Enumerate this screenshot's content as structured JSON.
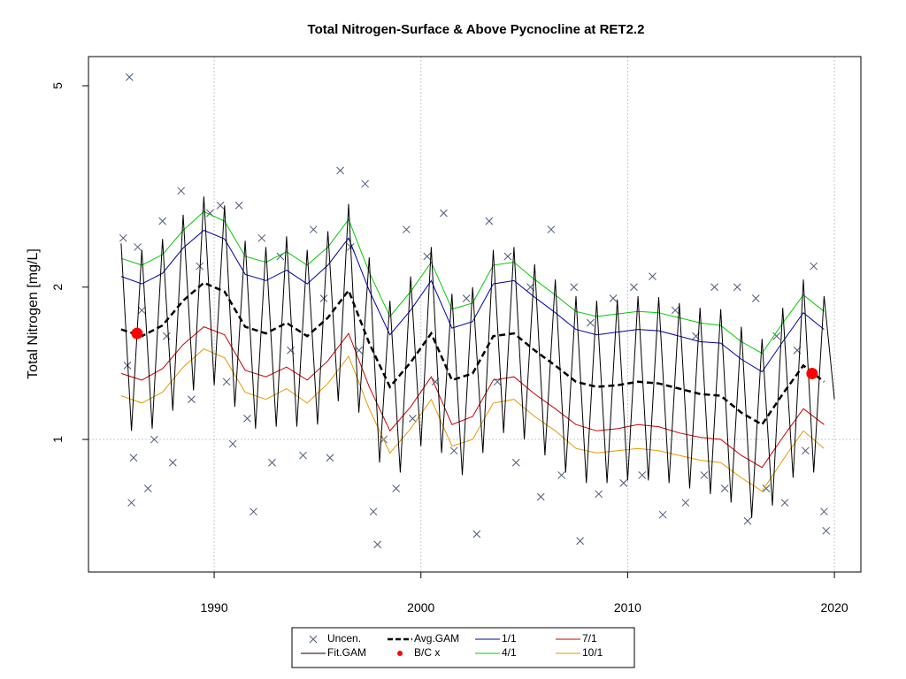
{
  "chart_data": {
    "type": "line",
    "title": "Total Nitrogen-Surface & Above Pycnocline at RET2.2",
    "y_label": "Total Nitrogen [mg/L]",
    "log_y": true,
    "grid": true,
    "ygrid": [
      1
    ],
    "xlim": [
      1983.92,
      2021.28
    ],
    "xticks": [
      1990,
      2000,
      2010,
      2020
    ],
    "ylim": [
      0.547,
      5.71
    ],
    "yticks": [
      1,
      2,
      5
    ],
    "x": [
      1985.5,
      1986.5,
      1987.5,
      1988.5,
      1989.5,
      1990.5,
      1991.5,
      1992.5,
      1993.5,
      1994.5,
      1995.5,
      1996.5,
      1997.5,
      1998.5,
      1999.5,
      2000.5,
      2001.5,
      2002.5,
      2003.5,
      2004.5,
      2005.5,
      2006.5,
      2007.5,
      2008.5,
      2009.5,
      2010.5,
      2011.5,
      2012.5,
      2013.5,
      2014.5,
      2015.5,
      2016.5,
      2017.5,
      2018.5,
      2019.5
    ],
    "series": [
      {
        "name": "Uncen.",
        "kind": "cross",
        "color": "#4a5a78",
        "x": [
          1985.6,
          1985.8,
          1986.0,
          1986.1,
          1986.3,
          1986.5,
          1986.8,
          1987.1,
          1987.5,
          1987.7,
          1988.0,
          1988.4,
          1988.9,
          1989.3,
          1989.8,
          1990.3,
          1990.6,
          1990.9,
          1991.2,
          1991.6,
          1991.9,
          1992.3,
          1992.8,
          1993.2,
          1993.7,
          1994.3,
          1994.8,
          1995.3,
          1995.6,
          1996.1,
          1996.6,
          1997.0,
          1997.3,
          1997.7,
          1997.9,
          1998.2,
          1998.8,
          1999.3,
          1999.6,
          2000.3,
          2000.7,
          2001.1,
          2001.6,
          2002.2,
          2002.7,
          2003.3,
          2003.7,
          2004.2,
          2004.6,
          2005.3,
          2005.8,
          2006.3,
          2006.8,
          2007.4,
          2007.7,
          2008.2,
          2008.6,
          2009.3,
          2009.8,
          2010.3,
          2010.7,
          2011.2,
          2011.7,
          2012.3,
          2012.8,
          2013.3,
          2013.7,
          2014.2,
          2014.7,
          2015.3,
          2015.8,
          2016.2,
          2016.7,
          2017.2,
          2017.6,
          2018.2,
          2018.6,
          2019.0,
          2019.5,
          2019.6,
          1985.9
        ],
        "values": [
          2.5,
          1.4,
          0.75,
          0.92,
          2.4,
          1.8,
          0.8,
          1.0,
          2.7,
          1.6,
          0.9,
          3.1,
          1.2,
          2.2,
          2.8,
          2.9,
          1.3,
          0.98,
          2.9,
          1.1,
          0.72,
          2.5,
          0.9,
          2.3,
          1.5,
          0.93,
          2.6,
          1.9,
          0.92,
          3.4,
          2.4,
          1.5,
          3.2,
          0.72,
          0.62,
          1.0,
          0.8,
          2.6,
          1.1,
          2.3,
          1.3,
          2.8,
          0.95,
          1.9,
          0.65,
          2.7,
          1.3,
          2.3,
          0.9,
          2.0,
          0.77,
          2.6,
          0.85,
          2.0,
          0.63,
          1.7,
          0.78,
          1.9,
          0.82,
          2.0,
          0.85,
          2.1,
          0.71,
          1.8,
          0.75,
          1.6,
          0.85,
          2.0,
          0.8,
          2.0,
          0.69,
          1.9,
          0.8,
          1.6,
          0.75,
          1.5,
          0.95,
          2.2,
          0.72,
          0.66,
          5.2
        ]
      },
      {
        "name": "Fit.GAM",
        "kind": "line",
        "color": "#000000",
        "x": [
          1985.5,
          1986.0,
          1986.5,
          1987.0,
          1987.5,
          1988.0,
          1988.5,
          1989.0,
          1989.5,
          1990.0,
          1990.5,
          1991.0,
          1991.5,
          1992.0,
          1992.5,
          1993.0,
          1993.5,
          1994.0,
          1994.5,
          1995.0,
          1995.5,
          1996.0,
          1996.5,
          1997.0,
          1997.5,
          1998.0,
          1998.5,
          1999.0,
          1999.5,
          2000.0,
          2000.5,
          2001.0,
          2001.5,
          2002.0,
          2002.5,
          2003.0,
          2003.5,
          2004.0,
          2004.5,
          2005.0,
          2005.5,
          2006.0,
          2006.5,
          2007.0,
          2007.5,
          2008.0,
          2008.5,
          2009.0,
          2009.5,
          2010.0,
          2010.5,
          2011.0,
          2011.5,
          2012.0,
          2012.5,
          2013.0,
          2013.5,
          2014.0,
          2014.5,
          2015.0,
          2015.5,
          2016.0,
          2016.5,
          2017.0,
          2017.5,
          2018.0,
          2018.5,
          2019.0,
          2019.5,
          2020.0
        ],
        "values": [
          2.44,
          1.04,
          2.37,
          1.05,
          2.49,
          1.14,
          2.78,
          1.25,
          3.02,
          1.28,
          2.9,
          1.16,
          2.47,
          1.05,
          2.4,
          1.06,
          2.52,
          1.06,
          2.37,
          1.07,
          2.58,
          1.19,
          2.92,
          1.13,
          2.29,
          0.9,
          1.88,
          0.86,
          2.1,
          0.97,
          2.4,
          0.94,
          1.94,
          0.85,
          2.0,
          0.94,
          2.37,
          1.03,
          2.4,
          1.0,
          2.22,
          0.93,
          2.07,
          0.86,
          1.92,
          0.82,
          1.88,
          0.82,
          1.89,
          0.83,
          1.92,
          0.83,
          1.91,
          0.82,
          1.86,
          0.8,
          1.82,
          0.78,
          1.81,
          0.75,
          1.67,
          0.7,
          1.58,
          0.74,
          1.82,
          0.84,
          2.07,
          0.86,
          1.92,
          1.2
        ]
      },
      {
        "name": "Avg.GAM",
        "kind": "dashed",
        "color": "#000000",
        "values": [
          1.65,
          1.6,
          1.68,
          1.88,
          2.04,
          1.96,
          1.67,
          1.62,
          1.7,
          1.6,
          1.74,
          1.97,
          1.55,
          1.27,
          1.42,
          1.62,
          1.31,
          1.35,
          1.6,
          1.62,
          1.5,
          1.4,
          1.3,
          1.27,
          1.28,
          1.3,
          1.29,
          1.26,
          1.23,
          1.22,
          1.13,
          1.07,
          1.23,
          1.4,
          1.3
        ]
      },
      {
        "name": "B/C x",
        "kind": "dot",
        "color": "#ff0000",
        "x": [
          1986.27,
          2018.92
        ],
        "values": [
          1.62,
          1.35
        ]
      },
      {
        "name": "1/1",
        "kind": "line",
        "color": "#0000aa",
        "values": [
          2.1,
          2.03,
          2.13,
          2.39,
          2.59,
          2.49,
          2.12,
          2.06,
          2.16,
          2.03,
          2.21,
          2.5,
          1.97,
          1.61,
          1.8,
          2.06,
          1.66,
          1.71,
          2.03,
          2.06,
          1.91,
          1.78,
          1.65,
          1.61,
          1.63,
          1.65,
          1.64,
          1.6,
          1.56,
          1.55,
          1.44,
          1.36,
          1.56,
          1.78,
          1.65
        ]
      },
      {
        "name": "4/1",
        "kind": "line",
        "color": "#00cc00",
        "values": [
          2.28,
          2.21,
          2.32,
          2.59,
          2.82,
          2.7,
          2.3,
          2.24,
          2.35,
          2.21,
          2.4,
          2.72,
          2.14,
          1.75,
          1.96,
          2.24,
          1.81,
          1.86,
          2.21,
          2.24,
          2.07,
          1.93,
          1.79,
          1.75,
          1.77,
          1.79,
          1.78,
          1.74,
          1.7,
          1.68,
          1.56,
          1.48,
          1.7,
          1.93,
          1.79
        ]
      },
      {
        "name": "7/1",
        "kind": "line",
        "color": "#cc0000",
        "values": [
          1.35,
          1.31,
          1.38,
          1.54,
          1.67,
          1.61,
          1.37,
          1.33,
          1.39,
          1.31,
          1.43,
          1.62,
          1.27,
          1.04,
          1.16,
          1.33,
          1.07,
          1.11,
          1.31,
          1.33,
          1.23,
          1.15,
          1.07,
          1.04,
          1.05,
          1.07,
          1.06,
          1.03,
          1.01,
          1.0,
          0.93,
          0.88,
          1.01,
          1.15,
          1.07
        ]
      },
      {
        "name": "10/1",
        "kind": "line",
        "color": "#e69a00",
        "values": [
          1.22,
          1.18,
          1.24,
          1.39,
          1.51,
          1.45,
          1.24,
          1.2,
          1.26,
          1.18,
          1.29,
          1.46,
          1.15,
          0.94,
          1.05,
          1.2,
          0.97,
          1.0,
          1.18,
          1.2,
          1.11,
          1.04,
          0.96,
          0.94,
          0.95,
          0.96,
          0.95,
          0.93,
          0.91,
          0.9,
          0.84,
          0.79,
          0.91,
          1.04,
          0.96
        ]
      }
    ]
  }
}
